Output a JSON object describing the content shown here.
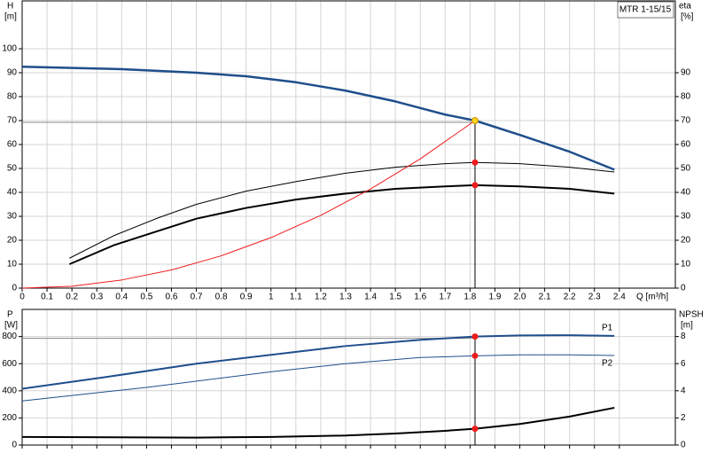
{
  "chart_data": [
    {
      "type": "line",
      "title": "MTR 1-15/15",
      "y_label": "H",
      "y_unit": "[m]",
      "y2_label": "eta",
      "y2_unit": "[%]",
      "x_label": "Q [m³/h]",
      "xlim": [
        0,
        2.625
      ],
      "xticks": [
        0,
        0.1,
        0.2,
        0.3,
        0.4,
        0.5,
        0.6,
        0.7,
        0.8,
        0.9,
        1,
        1.1,
        1.2,
        1.3,
        1.4,
        1.5,
        1.6,
        1.7,
        1.8,
        1.9,
        {
          "value": 2,
          "label": "2.0"
        },
        2.1,
        2.2,
        2.3,
        2.4
      ],
      "ylim": [
        0,
        120
      ],
      "yticks": [
        0,
        10,
        20,
        30,
        40,
        50,
        60,
        70,
        80,
        90,
        100
      ],
      "y2lim": [
        0,
        120
      ],
      "y2ticks": [
        0,
        10,
        20,
        30,
        40,
        50,
        60,
        70,
        80,
        90
      ],
      "grid": true,
      "duty_x": 1.82,
      "series": [
        {
          "color": "#1f4e8c",
          "width": 2.5,
          "marker_color": "#ffd21f",
          "x": [
            0,
            0.2,
            0.4,
            0.7,
            0.9,
            1.1,
            1.3,
            1.5,
            1.7,
            1.82,
            2.0,
            2.2,
            2.38
          ],
          "values": [
            92.5,
            92,
            91.5,
            90,
            88.5,
            86,
            82.5,
            78,
            72.5,
            70,
            64,
            57,
            49.5
          ]
        },
        {
          "color": "#000000",
          "width": 1,
          "axis": "y2",
          "marker_color": "#ee1c1c",
          "x": [
            0.19,
            0.37,
            0.55,
            0.7,
            0.9,
            1.1,
            1.3,
            1.5,
            1.7,
            1.82,
            2.0,
            2.2,
            2.38
          ],
          "values": [
            12.5,
            22,
            29.5,
            35,
            40.5,
            44.5,
            48,
            50.5,
            52,
            52.5,
            52,
            50.5,
            48.5
          ]
        },
        {
          "color": "#000000",
          "width": 2,
          "axis": "y2",
          "marker_color": "#ee1c1c",
          "x": [
            0.19,
            0.37,
            0.55,
            0.7,
            0.9,
            1.1,
            1.3,
            1.5,
            1.7,
            1.82,
            2.0,
            2.2,
            2.38
          ],
          "values": [
            10,
            18,
            24,
            29,
            33.5,
            37,
            39.5,
            41.5,
            42.5,
            43,
            42.5,
            41.5,
            39.5
          ]
        },
        {
          "color": "#ee1c1c",
          "width": 1,
          "x": [
            0,
            0.2,
            0.4,
            0.6,
            0.8,
            1.0,
            1.2,
            1.4,
            1.6,
            1.82
          ],
          "values": [
            0,
            0.8,
            3.4,
            7.6,
            13.5,
            21.1,
            30.4,
            41.4,
            54,
            70
          ]
        }
      ]
    },
    {
      "type": "line",
      "y_label": "P",
      "y_unit": "[W]",
      "y2_label": "NPSH",
      "y2_unit": "[m]",
      "xlim": [
        0,
        2.625
      ],
      "xticks": [
        0,
        0.1,
        0.2,
        0.3,
        0.4,
        0.5,
        0.6,
        0.7,
        0.8,
        0.9,
        1,
        1.1,
        1.2,
        1.3,
        1.4,
        1.5,
        1.6,
        1.7,
        1.8,
        1.9,
        2,
        2.1,
        2.2,
        2.3,
        2.4
      ],
      "ylim": [
        0,
        1000
      ],
      "yticks": [
        0,
        200,
        400,
        600,
        800
      ],
      "y2lim": [
        0,
        10
      ],
      "y2ticks": [
        0,
        2,
        4,
        6,
        8
      ],
      "grid": true,
      "duty_x": 1.82,
      "series": [
        {
          "name": "P1",
          "color": "#1f4e8c",
          "width": 2,
          "marker_color": "#ee1c1c",
          "x": [
            0,
            0.35,
            0.7,
            1.0,
            1.3,
            1.6,
            1.82,
            2.0,
            2.2,
            2.38
          ],
          "values": [
            415,
            505,
            600,
            665,
            730,
            775,
            800,
            808,
            810,
            805
          ]
        },
        {
          "name": "P2",
          "color": "#1f4e8c",
          "width": 1,
          "marker_color": "#ee1c1c",
          "x": [
            0,
            0.5,
            1.0,
            1.3,
            1.6,
            1.82,
            2.0,
            2.2,
            2.38
          ],
          "values": [
            325,
            425,
            540,
            600,
            645,
            658,
            665,
            665,
            660
          ]
        },
        {
          "color": "#000000",
          "width": 2,
          "axis": "y2",
          "marker_color": "#ee1c1c",
          "x": [
            0,
            0.7,
            1.0,
            1.3,
            1.5,
            1.7,
            1.82,
            2.0,
            2.2,
            2.38
          ],
          "values": [
            0.6,
            0.55,
            0.6,
            0.7,
            0.85,
            1.05,
            1.2,
            1.55,
            2.1,
            2.75
          ]
        }
      ]
    }
  ]
}
